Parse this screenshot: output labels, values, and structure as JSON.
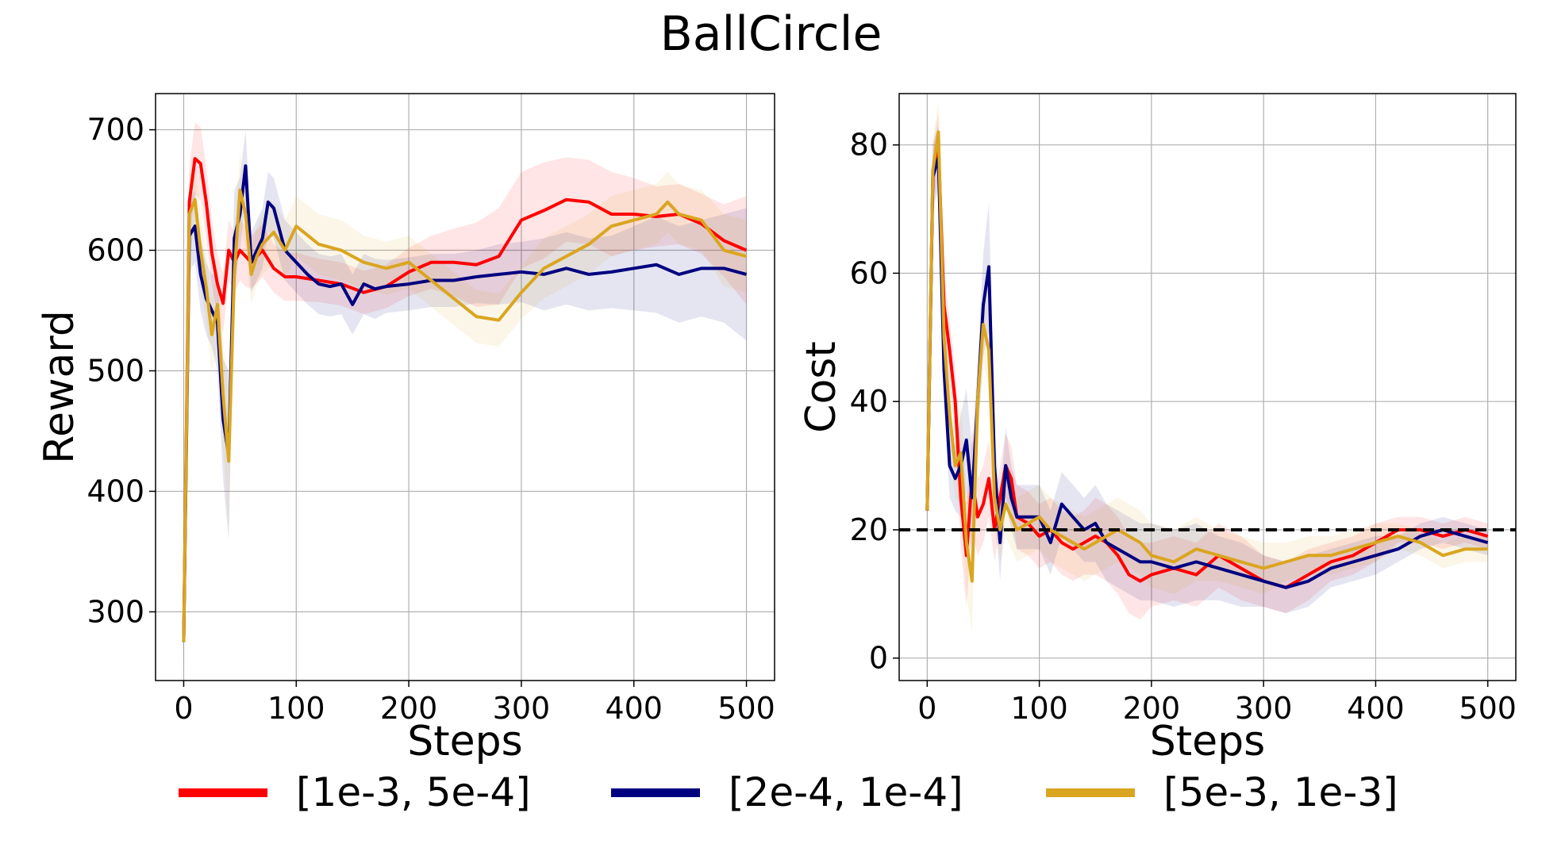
{
  "title": "BallCircle",
  "legend": [
    {
      "label": "[1e-3, 5e-4]",
      "color": "#ff0000"
    },
    {
      "label": "[2e-4, 1e-4]",
      "color": "#000080"
    },
    {
      "label": "[5e-3, 1e-3]",
      "color": "#daa520"
    }
  ],
  "chart_data": [
    {
      "type": "line",
      "xlabel": "Steps",
      "ylabel": "Reward",
      "xlim": [
        -25,
        525
      ],
      "ylim": [
        243,
        730
      ],
      "xticks": [
        0,
        100,
        200,
        300,
        400,
        500
      ],
      "yticks": [
        300,
        400,
        500,
        600,
        700
      ],
      "grid": true,
      "series": [
        {
          "name": "[1e-3, 5e-4]",
          "color": "#ff0000",
          "x": [
            0,
            5,
            10,
            15,
            20,
            25,
            30,
            35,
            40,
            45,
            50,
            55,
            60,
            70,
            80,
            90,
            100,
            120,
            140,
            160,
            180,
            200,
            220,
            240,
            260,
            280,
            300,
            320,
            340,
            360,
            380,
            400,
            420,
            440,
            460,
            480,
            500
          ],
          "y": [
            275,
            640,
            676,
            672,
            640,
            598,
            572,
            556,
            600,
            590,
            600,
            595,
            590,
            600,
            585,
            578,
            578,
            575,
            572,
            565,
            570,
            582,
            590,
            590,
            588,
            595,
            625,
            633,
            642,
            640,
            630,
            630,
            628,
            630,
            622,
            608,
            600
          ],
          "band": [
            25,
            30,
            30,
            30,
            30,
            28,
            25,
            25,
            25,
            25,
            25,
            25,
            22,
            22,
            20,
            20,
            20,
            18,
            18,
            18,
            18,
            20,
            22,
            28,
            35,
            40,
            40,
            40,
            35,
            35,
            35,
            30,
            25,
            25,
            25,
            30,
            45
          ]
        },
        {
          "name": "[2e-4, 1e-4]",
          "color": "#000080",
          "x": [
            0,
            5,
            10,
            15,
            20,
            25,
            30,
            35,
            40,
            45,
            50,
            55,
            60,
            65,
            70,
            75,
            80,
            90,
            100,
            110,
            120,
            130,
            140,
            150,
            160,
            170,
            180,
            200,
            220,
            240,
            260,
            280,
            300,
            320,
            340,
            360,
            380,
            400,
            420,
            440,
            460,
            480,
            500
          ],
          "y": [
            275,
            612,
            620,
            580,
            560,
            550,
            540,
            460,
            430,
            610,
            630,
            670,
            590,
            600,
            610,
            640,
            635,
            600,
            590,
            580,
            572,
            570,
            572,
            555,
            572,
            568,
            570,
            572,
            575,
            575,
            578,
            580,
            582,
            580,
            585,
            580,
            582,
            585,
            588,
            580,
            585,
            585,
            580
          ],
          "band": [
            25,
            30,
            30,
            30,
            30,
            30,
            40,
            50,
            70,
            40,
            30,
            30,
            25,
            25,
            25,
            25,
            25,
            25,
            25,
            25,
            25,
            25,
            25,
            25,
            25,
            25,
            22,
            22,
            22,
            22,
            22,
            25,
            25,
            30,
            30,
            30,
            30,
            35,
            40,
            40,
            40,
            45,
            55
          ]
        },
        {
          "name": "[5e-3, 1e-3]",
          "color": "#daa520",
          "x": [
            0,
            5,
            10,
            15,
            20,
            25,
            30,
            35,
            40,
            45,
            50,
            55,
            60,
            65,
            70,
            80,
            90,
            100,
            120,
            140,
            160,
            180,
            200,
            220,
            240,
            260,
            280,
            300,
            320,
            340,
            360,
            380,
            400,
            420,
            430,
            440,
            460,
            480,
            500
          ],
          "y": [
            275,
            630,
            642,
            600,
            570,
            530,
            555,
            480,
            425,
            580,
            650,
            630,
            580,
            595,
            605,
            615,
            600,
            620,
            605,
            600,
            590,
            585,
            590,
            575,
            560,
            545,
            542,
            565,
            585,
            595,
            605,
            620,
            625,
            630,
            640,
            630,
            625,
            600,
            595
          ],
          "band": [
            25,
            30,
            30,
            30,
            30,
            30,
            35,
            45,
            60,
            35,
            30,
            30,
            25,
            25,
            25,
            25,
            25,
            25,
            25,
            25,
            22,
            22,
            22,
            22,
            22,
            22,
            22,
            22,
            25,
            25,
            25,
            25,
            25,
            25,
            25,
            25,
            25,
            30,
            30
          ]
        }
      ]
    },
    {
      "type": "line",
      "xlabel": "Steps",
      "ylabel": "Cost",
      "xlim": [
        -25,
        525
      ],
      "ylim": [
        -3.5,
        88
      ],
      "xticks": [
        0,
        100,
        200,
        300,
        400,
        500
      ],
      "yticks": [
        0,
        20,
        40,
        60,
        80
      ],
      "grid": true,
      "threshold": {
        "y": 20,
        "style": "dashed",
        "color": "#000000"
      },
      "series": [
        {
          "name": "[1e-3, 5e-4]",
          "color": "#ff0000",
          "x": [
            0,
            5,
            10,
            15,
            20,
            25,
            30,
            35,
            40,
            45,
            50,
            55,
            60,
            65,
            70,
            75,
            80,
            90,
            100,
            110,
            120,
            130,
            140,
            150,
            160,
            170,
            180,
            190,
            200,
            220,
            240,
            260,
            280,
            300,
            320,
            340,
            360,
            380,
            400,
            420,
            440,
            460,
            480,
            500
          ],
          "y": [
            23,
            75,
            80,
            55,
            48,
            40,
            25,
            16,
            28,
            22,
            24,
            28,
            20,
            25,
            30,
            28,
            22,
            21,
            19,
            20,
            18,
            17,
            18,
            19,
            18,
            16,
            13,
            12,
            13,
            14,
            13,
            16,
            14,
            12,
            11,
            13,
            15,
            16,
            18,
            20,
            20,
            19,
            20,
            19
          ],
          "band": [
            3,
            5,
            5,
            5,
            5,
            5,
            8,
            8,
            8,
            6,
            6,
            6,
            5,
            5,
            5,
            5,
            5,
            5,
            5,
            5,
            5,
            5,
            5,
            6,
            6,
            6,
            6,
            6,
            5,
            5,
            5,
            5,
            5,
            4,
            4,
            4,
            3,
            3,
            3,
            2,
            2,
            2,
            2,
            2
          ]
        },
        {
          "name": "[2e-4, 1e-4]",
          "color": "#000080",
          "x": [
            0,
            5,
            10,
            15,
            20,
            25,
            30,
            35,
            40,
            45,
            50,
            55,
            60,
            65,
            70,
            75,
            80,
            90,
            100,
            110,
            120,
            130,
            140,
            150,
            160,
            170,
            180,
            190,
            200,
            220,
            240,
            260,
            280,
            300,
            320,
            340,
            360,
            380,
            400,
            420,
            440,
            460,
            480,
            500
          ],
          "y": [
            23,
            75,
            78,
            45,
            30,
            28,
            30,
            34,
            25,
            40,
            55,
            61,
            30,
            18,
            30,
            25,
            22,
            22,
            22,
            18,
            24,
            22,
            20,
            21,
            18,
            17,
            16,
            15,
            15,
            14,
            15,
            14,
            13,
            12,
            11,
            12,
            14,
            15,
            16,
            17,
            19,
            20,
            19,
            18
          ],
          "band": [
            3,
            5,
            5,
            5,
            5,
            5,
            8,
            8,
            8,
            6,
            8,
            10,
            6,
            6,
            6,
            5,
            5,
            5,
            5,
            5,
            5,
            5,
            5,
            6,
            6,
            6,
            6,
            6,
            6,
            6,
            6,
            5,
            5,
            4,
            4,
            4,
            3,
            3,
            3,
            2,
            2,
            2,
            2,
            2
          ]
        },
        {
          "name": "[5e-3, 1e-3]",
          "color": "#daa520",
          "x": [
            0,
            5,
            10,
            15,
            20,
            25,
            30,
            35,
            40,
            45,
            50,
            55,
            60,
            65,
            70,
            75,
            80,
            90,
            100,
            110,
            120,
            130,
            140,
            150,
            160,
            170,
            180,
            190,
            200,
            220,
            240,
            260,
            280,
            300,
            320,
            340,
            360,
            380,
            400,
            420,
            440,
            460,
            480,
            500
          ],
          "y": [
            23,
            76,
            82,
            50,
            38,
            30,
            32,
            18,
            12,
            40,
            52,
            48,
            25,
            20,
            24,
            22,
            20,
            21,
            22,
            20,
            19,
            18,
            17,
            18,
            19,
            20,
            19,
            18,
            16,
            15,
            17,
            16,
            15,
            14,
            15,
            16,
            16,
            17,
            18,
            19,
            18,
            16,
            17,
            17
          ],
          "band": [
            3,
            5,
            5,
            5,
            5,
            5,
            8,
            8,
            8,
            6,
            6,
            6,
            5,
            5,
            5,
            5,
            5,
            5,
            5,
            5,
            5,
            5,
            5,
            5,
            5,
            5,
            5,
            5,
            5,
            5,
            5,
            4,
            4,
            4,
            3,
            3,
            3,
            3,
            3,
            2,
            2,
            2,
            2,
            2
          ]
        }
      ]
    }
  ]
}
